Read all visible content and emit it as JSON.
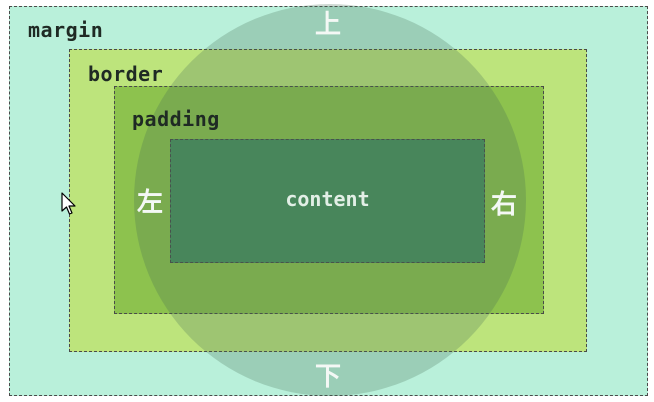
{
  "boxes": {
    "margin": "margin",
    "border": "border",
    "padding": "padding",
    "content": "content"
  },
  "directions": {
    "top": "上",
    "bottom": "下",
    "left": "左",
    "right": "右"
  },
  "colors": {
    "margin": "#b9f0da",
    "border": "#bde47c",
    "padding": "#8dc24e",
    "content": "#4a8f5e",
    "overlay": "#466e55"
  },
  "cursor_icon": "arrow-cursor-icon"
}
